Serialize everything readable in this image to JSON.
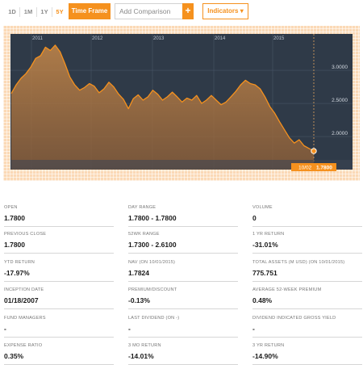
{
  "toolbar": {
    "timeframes": [
      "1D",
      "1M",
      "1Y",
      "5Y"
    ],
    "selected_timeframe": "5Y",
    "timeframe_label": "Time Frame",
    "compare_placeholder": "Add Comparison",
    "compare_add": "+",
    "indicators_label": "Indicators ▾"
  },
  "colors": {
    "accent": "#f5911e",
    "chart_bg": "#2f3a48",
    "frame": "#fbd9b6"
  },
  "chart_data": {
    "type": "area",
    "x_tick_labels": [
      "2011",
      "2012",
      "2013",
      "2014",
      "2015"
    ],
    "y_tick_labels": [
      "3.0000",
      "2.5000",
      "2.0000"
    ],
    "y_ticks": [
      3.0,
      2.5,
      2.0
    ],
    "ylim": [
      1.5,
      3.55
    ],
    "grid": true,
    "last_point_label": "10/02",
    "last_value_label": "1.7800",
    "series": [
      {
        "values": [
          2.65,
          2.78,
          2.88,
          2.95,
          3.05,
          3.18,
          3.22,
          3.35,
          3.3,
          3.38,
          3.28,
          3.1,
          2.9,
          2.78,
          2.7,
          2.74,
          2.8,
          2.76,
          2.66,
          2.72,
          2.82,
          2.75,
          2.64,
          2.56,
          2.42,
          2.57,
          2.63,
          2.55,
          2.6,
          2.7,
          2.64,
          2.55,
          2.6,
          2.67,
          2.6,
          2.52,
          2.58,
          2.55,
          2.62,
          2.5,
          2.55,
          2.62,
          2.55,
          2.48,
          2.52,
          2.6,
          2.68,
          2.78,
          2.85,
          2.8,
          2.78,
          2.72,
          2.6,
          2.45,
          2.35,
          2.22,
          2.1,
          1.98,
          1.9,
          1.95,
          1.86,
          1.82,
          1.78
        ]
      }
    ]
  },
  "stats": [
    {
      "label": "OPEN",
      "value": "1.7800"
    },
    {
      "label": "DAY RANGE",
      "value": "1.7800 - 1.7800"
    },
    {
      "label": "VOLUME",
      "value": "0"
    },
    {
      "label": "PREVIOUS CLOSE",
      "value": "1.7800"
    },
    {
      "label": "52WK RANGE",
      "value": "1.7300 - 2.6100"
    },
    {
      "label": "1 YR RETURN",
      "value": "-31.01%"
    },
    {
      "label": "YTD RETURN",
      "value": "-17.97%"
    },
    {
      "label": "NAV (ON 10/01/2015)",
      "value": "1.7824"
    },
    {
      "label": "TOTAL ASSETS (M USD) (ON 10/01/2015)",
      "value": "775.751"
    },
    {
      "label": "INCEPTION DATE",
      "value": "01/18/2007"
    },
    {
      "label": "PREMIUM/DISCOUNT",
      "value": "-0.13%"
    },
    {
      "label": "AVERAGE 52-WEEK PREMIUM",
      "value": "0.48%"
    },
    {
      "label": "FUND MANAGERS",
      "value": "-"
    },
    {
      "label": "LAST DIVIDEND (ON -)",
      "value": "-"
    },
    {
      "label": "DIVIDEND INDICATED GROSS YIELD",
      "value": "-"
    },
    {
      "label": "EXPENSE RATIO",
      "value": "0.35%"
    },
    {
      "label": "3 MO RETURN",
      "value": "-14.01%"
    },
    {
      "label": "3 YR RETURN",
      "value": "-14.90%"
    }
  ]
}
